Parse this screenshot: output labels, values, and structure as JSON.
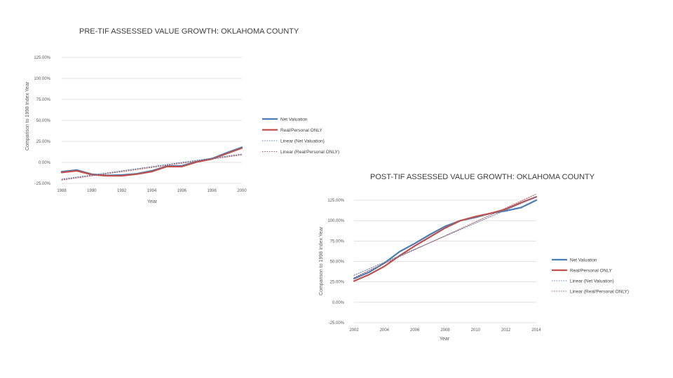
{
  "colors": {
    "net": "#4a7eb4",
    "real": "#c0504d",
    "trend_net": "#5b7fb0",
    "trend_real": "#a8545a"
  },
  "chart_data": [
    {
      "type": "line",
      "title": "PRE-TIF ASSESSED VALUE GROWTH: OKLAHOMA COUNTY",
      "xlabel": "Year",
      "ylabel": "Comparison to 1998 Index Year",
      "x": [
        1988,
        1989,
        1990,
        1991,
        1992,
        1993,
        1994,
        1995,
        1996,
        1997,
        1998,
        1999,
        2000
      ],
      "x_ticks": [
        1988,
        1990,
        1992,
        1994,
        1996,
        1998,
        2000
      ],
      "x_tick_labels": [
        "1988",
        "1990",
        "1992",
        "1994",
        "1996",
        "1998",
        "2000"
      ],
      "xlim": [
        1988,
        2000
      ],
      "ylim": [
        -25,
        125
      ],
      "y_ticks": [
        -25,
        0,
        25,
        50,
        75,
        100,
        125
      ],
      "y_tick_labels": [
        "-25.00%",
        "0.00%",
        "25.00%",
        "50.00%",
        "75.00%",
        "100.00%",
        "125.00%"
      ],
      "series": [
        {
          "name": "Net Valuation",
          "kind": "solid",
          "color_key": "net",
          "values": [
            -11,
            -9,
            -14,
            -15.5,
            -15,
            -13.5,
            -10,
            -4.5,
            -4,
            1,
            4.5,
            11.5,
            18
          ]
        },
        {
          "name": "Real/Personal ONLY",
          "kind": "solid",
          "color_key": "real",
          "values": [
            -12,
            -10,
            -14.5,
            -16,
            -16,
            -14,
            -11,
            -5,
            -5,
            0.5,
            4,
            10.5,
            17
          ]
        },
        {
          "name": "Linear (Net Valuation)",
          "kind": "dotted",
          "color_key": "trend_net",
          "values": [
            -20,
            -17.5,
            -15,
            -12.5,
            -10,
            -7.5,
            -5,
            -2.5,
            0,
            2.5,
            5,
            7.5,
            10
          ]
        },
        {
          "name": "Linear (Real/Personal ONLY)",
          "kind": "dotted",
          "color_key": "trend_real",
          "values": [
            -21,
            -18.5,
            -16,
            -13.5,
            -11,
            -8.5,
            -6,
            -3.5,
            -1,
            1.5,
            4,
            6.5,
            9
          ]
        }
      ],
      "legend": "right"
    },
    {
      "type": "line",
      "title": "POST-TIF ASSESSED VALUE GROWTH: OKLAHOMA COUNTY",
      "xlabel": "Year",
      "ylabel": "Comparison to 1998 Index Year",
      "x": [
        2002,
        2003,
        2004,
        2005,
        2006,
        2007,
        2008,
        2009,
        2010,
        2011,
        2012,
        2013,
        2014
      ],
      "x_ticks": [
        2002,
        2004,
        2006,
        2008,
        2010,
        2012,
        2014
      ],
      "x_tick_labels": [
        "2002",
        "2004",
        "2006",
        "2008",
        "2010",
        "2012",
        "2014"
      ],
      "xlim": [
        2002,
        2014
      ],
      "ylim": [
        -25,
        125
      ],
      "y_ticks": [
        -25,
        0,
        25,
        50,
        75,
        100,
        125
      ],
      "y_tick_labels": [
        "-25.00%",
        "0.00%",
        "25.00%",
        "50.00%",
        "75.00%",
        "100.00%",
        "125.00%"
      ],
      "series": [
        {
          "name": "Net Valuation",
          "kind": "solid",
          "color_key": "net",
          "values": [
            29,
            37,
            48,
            62,
            72,
            83,
            93,
            100,
            104,
            109,
            112,
            116,
            125
          ]
        },
        {
          "name": "Real/Personal ONLY",
          "kind": "solid",
          "color_key": "real",
          "values": [
            26,
            34,
            44,
            57,
            69,
            80,
            91,
            100,
            105,
            109,
            114,
            122,
            129
          ]
        },
        {
          "name": "Linear (Net Valuation)",
          "kind": "dotted",
          "color_key": "trend_net",
          "values": [
            33,
            41,
            49,
            57,
            65,
            73,
            81,
            89,
            97,
            105,
            113,
            121,
            129
          ]
        },
        {
          "name": "Linear (Real/Personal ONLY)",
          "kind": "dotted",
          "color_key": "trend_real",
          "values": [
            30,
            39,
            47.5,
            56,
            64.5,
            73,
            81.5,
            90,
            98.5,
            107,
            115.5,
            124,
            132.5
          ]
        }
      ],
      "legend": "right"
    }
  ]
}
